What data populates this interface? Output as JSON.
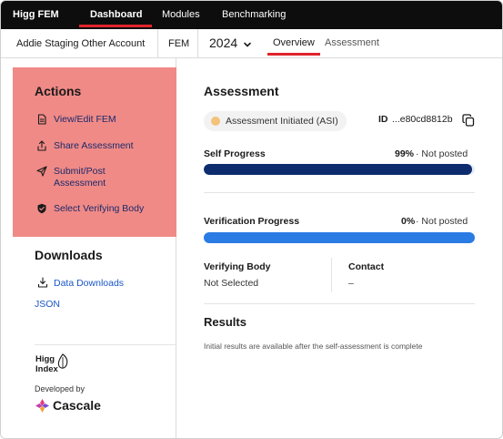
{
  "topnav": {
    "brand": "Higg FEM",
    "tabs": [
      {
        "label": "Dashboard",
        "active": true
      },
      {
        "label": "Modules",
        "active": false
      },
      {
        "label": "Benchmarking",
        "active": false
      }
    ]
  },
  "subheader": {
    "account": "Addie Staging Other Account",
    "module": "FEM",
    "year": "2024",
    "tabs": [
      {
        "label": "Overview",
        "active": true
      },
      {
        "label": "Assessment",
        "active": false
      }
    ]
  },
  "sidebar": {
    "actions_title": "Actions",
    "actions": [
      {
        "label": "View/Edit FEM",
        "icon": "document-icon"
      },
      {
        "label": "Share Assessment",
        "icon": "share-icon"
      },
      {
        "label": "Submit/Post Assessment",
        "icon": "send-icon"
      },
      {
        "label": "Select Verifying Body",
        "icon": "shield-check-icon"
      }
    ],
    "downloads_title": "Downloads",
    "downloads": [
      {
        "label": "Data Downloads",
        "icon": "download-icon"
      },
      {
        "label": "JSON"
      }
    ],
    "logo_text": "Higg Index",
    "developed_by": "Developed by",
    "company": "Cascale",
    "actions_bg_color": "#f08a86"
  },
  "main": {
    "assessment_title": "Assessment",
    "status": "Assessment Initiated (ASI)",
    "status_dot_color": "#f5c27a",
    "id_label": "ID",
    "id_value": "...e80cd8812b",
    "self_progress": {
      "label": "Self Progress",
      "percent_text": "99%",
      "status": "Not posted",
      "value": 0.99,
      "color": "#0c2c6e"
    },
    "verification_progress": {
      "label": "Verification Progress",
      "percent_text": "0%",
      "status": "Not posted",
      "value": 0.0,
      "color": "#2b7be4"
    },
    "verifying_body": {
      "label": "Verifying Body",
      "value": "Not Selected"
    },
    "contact": {
      "label": "Contact",
      "value": "–"
    },
    "results_title": "Results",
    "results_note": "Initial results are available after the self-assessment is complete"
  }
}
